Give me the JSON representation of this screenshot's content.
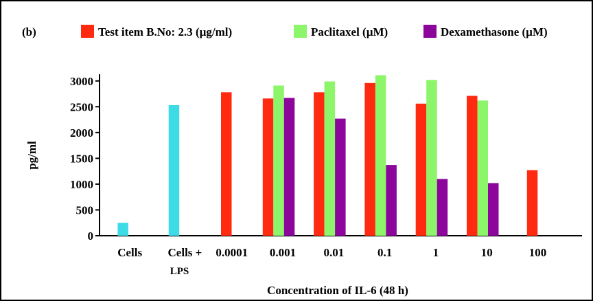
{
  "panel_label": "(b)",
  "chart_data": {
    "type": "bar",
    "title": "",
    "xlabel": "Concentration of IL-6 (48 h)",
    "ylabel": "pg/ml",
    "ylim": [
      0,
      3000
    ],
    "yticks": [
      0,
      500,
      1000,
      1500,
      2000,
      2500,
      3000
    ],
    "legend_position": "top",
    "grid": false,
    "categories": [
      {
        "line1": "Cells",
        "line2": ""
      },
      {
        "line1": "Cells +",
        "line2": "LPS"
      },
      {
        "line1": "0.0001",
        "line2": ""
      },
      {
        "line1": "0.001",
        "line2": ""
      },
      {
        "line1": "0.01",
        "line2": ""
      },
      {
        "line1": "0.1",
        "line2": ""
      },
      {
        "line1": "1",
        "line2": ""
      },
      {
        "line1": "10",
        "line2": ""
      },
      {
        "line1": "100",
        "line2": ""
      }
    ],
    "series": [
      {
        "name": "",
        "color": "#3ddbe6",
        "in_legend": false,
        "values": [
          250,
          2530,
          null,
          null,
          null,
          null,
          null,
          null,
          null
        ]
      },
      {
        "name": "Test item B.No: 2.3 (µg/ml)",
        "color": "#ff2a10",
        "in_legend": true,
        "values": [
          null,
          null,
          2780,
          2660,
          2780,
          2960,
          2560,
          2710,
          1270
        ]
      },
      {
        "name": "Paclitaxel (µM)",
        "color": "#8cf56a",
        "in_legend": true,
        "values": [
          null,
          null,
          null,
          2910,
          2990,
          3110,
          3020,
          2620,
          null
        ]
      },
      {
        "name": "Dexamethasone (µM)",
        "color": "#8c069c",
        "in_legend": true,
        "values": [
          null,
          null,
          null,
          2670,
          2270,
          1370,
          1100,
          1020,
          null
        ]
      }
    ]
  }
}
